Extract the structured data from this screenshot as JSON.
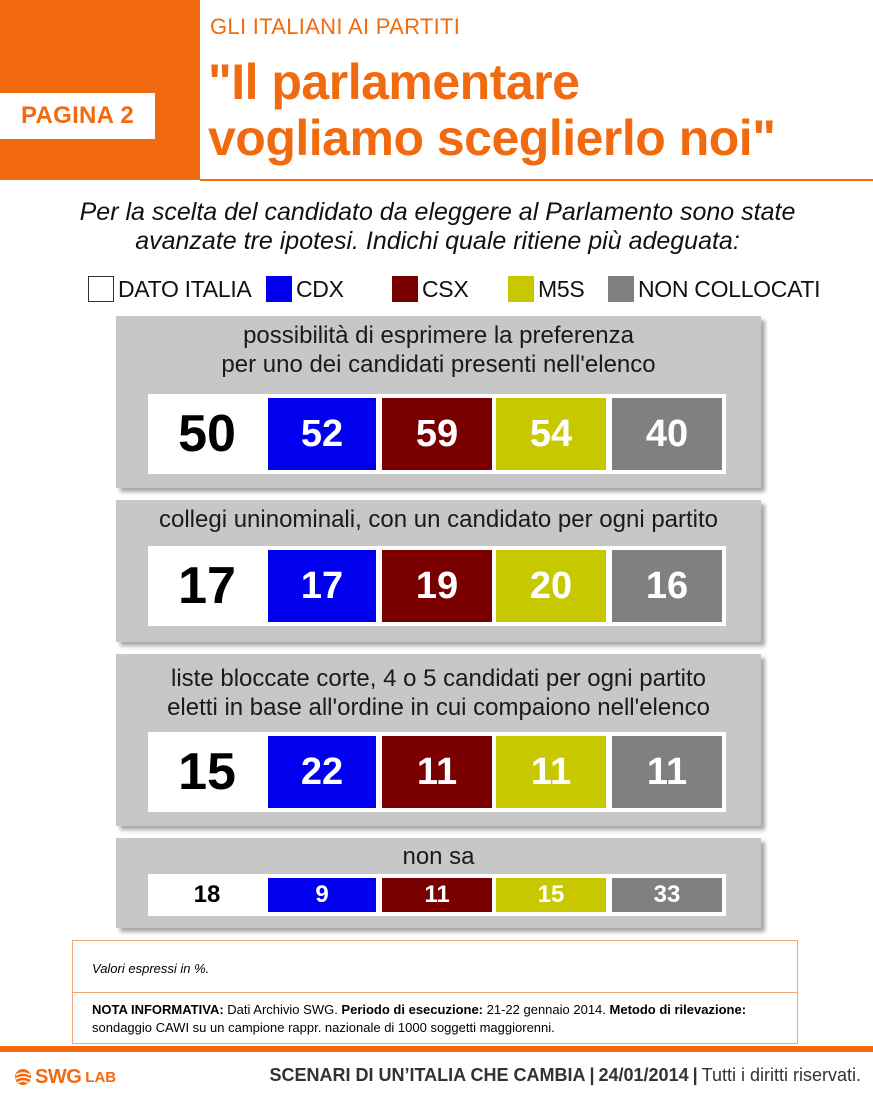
{
  "header": {
    "page_label": "PAGINA 2",
    "kicker": "GLI ITALIANI AI PARTITI",
    "title_line1": "\"Il parlamentare",
    "title_line2": "vogliamo sceglierlo noi\""
  },
  "question": {
    "line1": "Per la scelta del candidato da eleggere al Parlamento sono state",
    "line2": "avanzate tre ipotesi. Indichi quale ritiene più adeguata:"
  },
  "colors": {
    "accent": "#f26a10",
    "panel_bg": "#c7c7c7",
    "dato_italia": "#ffffff",
    "cdx": "#0000ee",
    "csx": "#7a0000",
    "m5s": "#c8c800",
    "non_collocati": "#808080"
  },
  "chart_data": {
    "type": "table",
    "unit": "%",
    "series": [
      {
        "name": "DATO ITALIA",
        "color": "#ffffff"
      },
      {
        "name": "CDX",
        "color": "#0000ee"
      },
      {
        "name": "CSX",
        "color": "#7a0000"
      },
      {
        "name": "M5S",
        "color": "#c8c800"
      },
      {
        "name": "NON COLLOCATI",
        "color": "#808080"
      }
    ],
    "rows": [
      {
        "label_lines": [
          "possibilità di esprimere la preferenza",
          "per uno dei candidati presenti nell'elenco"
        ],
        "values": [
          50,
          52,
          59,
          54,
          40
        ]
      },
      {
        "label_lines": [
          "collegi uninominali, con un candidato per ogni partito"
        ],
        "values": [
          17,
          17,
          19,
          20,
          16
        ]
      },
      {
        "label_lines": [
          "liste bloccate corte, 4 o 5 candidati per ogni partito",
          "eletti in base all'ordine in cui compaiono nell'elenco"
        ],
        "values": [
          15,
          22,
          11,
          11,
          11
        ]
      },
      {
        "label_lines": [
          "non sa"
        ],
        "values": [
          18,
          9,
          11,
          15,
          33
        ]
      }
    ]
  },
  "notes": {
    "unit_note": "Valori espressi in %.",
    "nota_label": "NOTA INFORMATIVA:",
    "nota_source": " Dati Archivio SWG. ",
    "periodo_label": "Periodo di esecuzione:",
    "periodo_value": " 21-22 gennaio 2014. ",
    "metodo_label": "Metodo di rilevazione:",
    "metodo_value": " sondaggio CAWI su un campione rappr. nazionale di 1000 soggetti maggiorenni."
  },
  "footer": {
    "logo_text": "SWG",
    "logo_sub": "LAB",
    "series_name": "SCENARI DI UN’ITALIA CHE CAMBIA",
    "separator": "|",
    "date": "24/01/2014",
    "rights": "Tutti i diritti riservati."
  }
}
